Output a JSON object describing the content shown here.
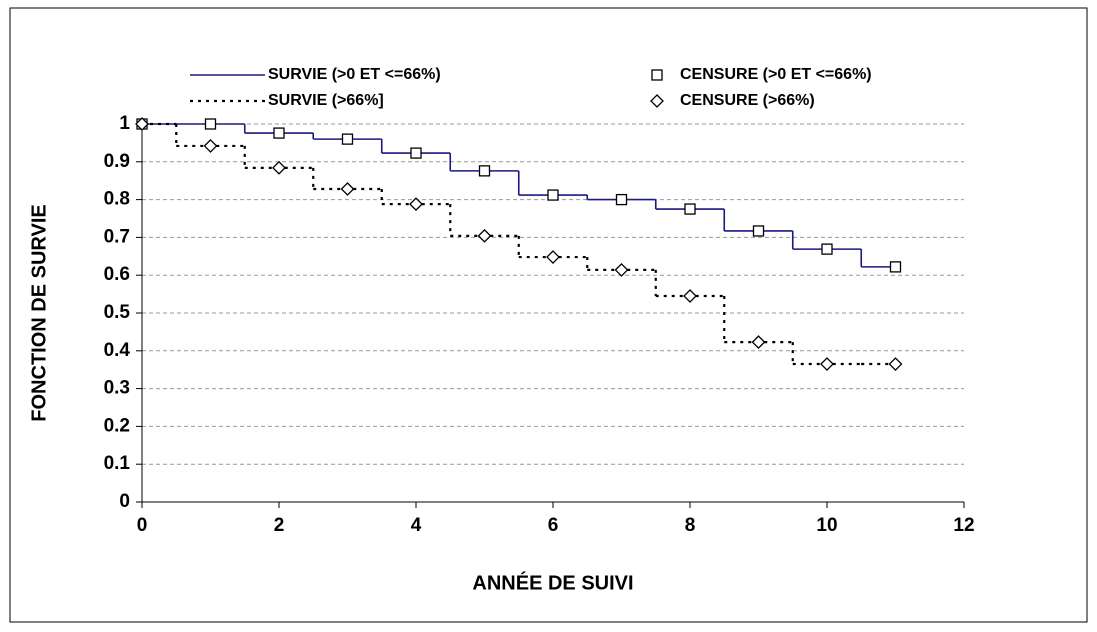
{
  "chart_data": {
    "type": "step",
    "x_label": "ANNÉE DE SUIVI",
    "y_label": "FONCTION DE SURVIE",
    "x": [
      0,
      1,
      2,
      3,
      4,
      5,
      6,
      7,
      8,
      9,
      10,
      11
    ],
    "series": [
      {
        "name": "SURVIE (>0 ET <=66%)",
        "censor_label": "CENSURE (>0 ET <=66%)",
        "color": "#1a1a80",
        "style": "solid",
        "marker": "square",
        "values": [
          1.0,
          1.0,
          0.976,
          0.96,
          0.923,
          0.876,
          0.812,
          0.8,
          0.775,
          0.717,
          0.669,
          0.622
        ]
      },
      {
        "name": "SURVIE (>66%]",
        "censor_label": "CENSURE (>66%)",
        "color": "#000000",
        "style": "dotted",
        "marker": "diamond",
        "values": [
          1.0,
          0.942,
          0.884,
          0.828,
          0.788,
          0.704,
          0.648,
          0.614,
          0.545,
          0.423,
          0.365,
          0.365
        ]
      }
    ],
    "xlim": [
      0,
      12
    ],
    "xticks": [
      0,
      2,
      4,
      6,
      8,
      10,
      12
    ],
    "ylim": [
      0,
      1
    ],
    "yticks": [
      0,
      0.1,
      0.2,
      0.3,
      0.4,
      0.5,
      0.6,
      0.7,
      0.8,
      0.9,
      1
    ],
    "grid": true
  }
}
